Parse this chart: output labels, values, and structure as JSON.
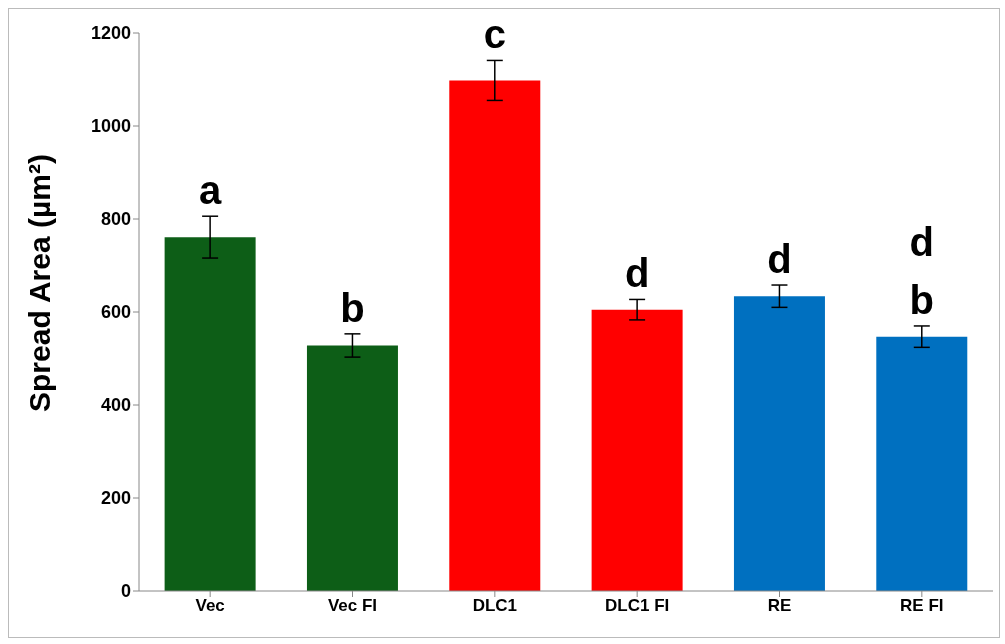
{
  "chart_data": {
    "type": "bar",
    "ylabel": "Spread Area (µm²)",
    "categories": [
      "Vec",
      "Vec FI",
      "DLC1",
      "DLC1 FI",
      "RE",
      "RE FI"
    ],
    "values": [
      761,
      528,
      1098,
      605,
      634,
      547
    ],
    "colors": [
      "#0d5e17",
      "#0d5e17",
      "#ff0000",
      "#ff0000",
      "#0070c0",
      "#0070c0"
    ],
    "errors": [
      45,
      25,
      43,
      22,
      24,
      23
    ],
    "ylim": [
      0,
      1200
    ],
    "yticks": [
      0,
      200,
      400,
      600,
      800,
      1000,
      1200
    ],
    "grid": false,
    "legend": false,
    "annotations": [
      {
        "text": "a",
        "x": "Vec",
        "y": 806
      },
      {
        "text": "b",
        "x": "Vec FI",
        "y": 553
      },
      {
        "text": "c",
        "x": "DLC1",
        "y": 1141
      },
      {
        "text": "d",
        "x": "DLC1 FI",
        "y": 627
      },
      {
        "text": "d",
        "x": "RE",
        "y": 658
      },
      {
        "text": "b",
        "x": "RE FI",
        "y": 570
      },
      {
        "text": "d",
        "x": "RE FI",
        "y": 570
      }
    ]
  }
}
